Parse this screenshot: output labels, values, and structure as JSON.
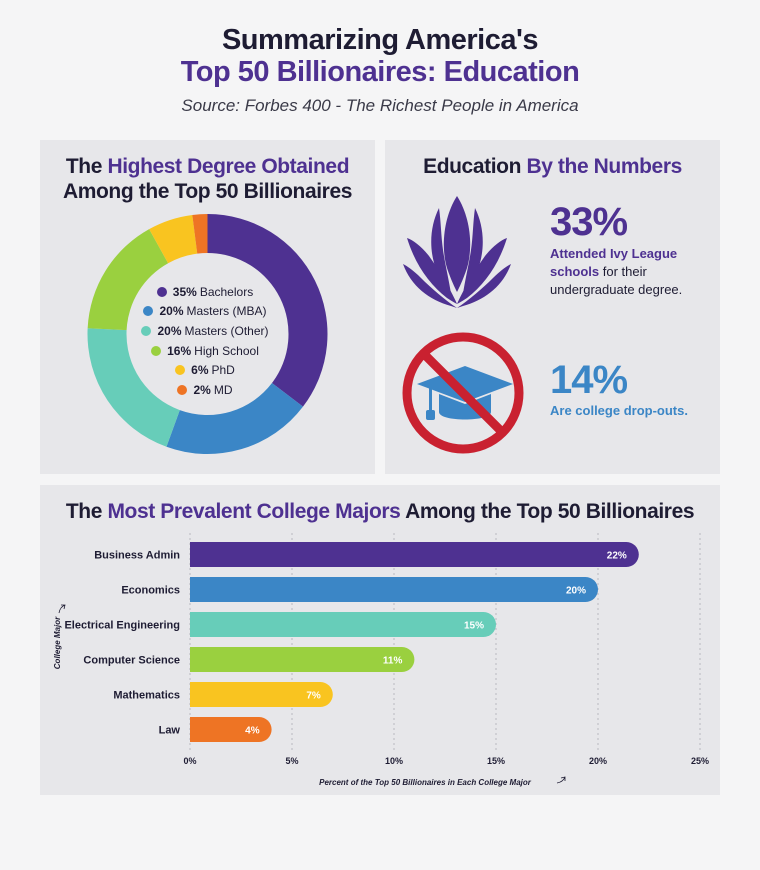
{
  "header": {
    "title_line1": "Summarizing America's",
    "title_line2": "Top 50 Billionaires: Education",
    "subtitle": "Source: Forbes 400 - The Richest People in America"
  },
  "degree_panel": {
    "title_part1": "The ",
    "title_accent": "Highest Degree Obtained",
    "title_line2": "Among the Top 50 Billionaires"
  },
  "numbers_panel": {
    "title_part1": "Education ",
    "title_accent": "By the Numbers",
    "stat1": {
      "value": "33%",
      "text_strong": "Attended Ivy League schools",
      "text_rest": " for their undergraduate degree.",
      "color": "#4e3191"
    },
    "stat2": {
      "value": "14%",
      "text": "Are college drop-outs.",
      "color": "#3b86c6"
    },
    "icons": [
      "ivy-leaf-icon",
      "graduation-cap-icon",
      "prohibited-icon"
    ]
  },
  "majors_panel": {
    "title_part1": "The ",
    "title_accent": "Most Prevalent College Majors",
    "title_part2": " Among the Top 50 Billionaires"
  },
  "chart_data": [
    {
      "type": "pie",
      "donut": true,
      "title": "The Highest Degree Obtained Among the Top 50 Billionaires",
      "categories": [
        "Bachelors",
        "Masters (MBA)",
        "Masters (Other)",
        "High School",
        "PhD",
        "MD"
      ],
      "values": [
        35,
        20,
        20,
        16,
        6,
        2
      ],
      "labels": [
        "35%",
        "20%",
        "20%",
        "16%",
        "6%",
        "2%"
      ],
      "colors": [
        "#4e3191",
        "#3b86c6",
        "#67cdb9",
        "#9ad03f",
        "#f9c420",
        "#ee7424"
      ],
      "legend": "center"
    },
    {
      "type": "bar",
      "orientation": "horizontal",
      "title": "The Most Prevalent College Majors Among the Top 50 Billionaires",
      "categories": [
        "Business Admin",
        "Economics",
        "Electrical Engineering",
        "Computer Science",
        "Mathematics",
        "Law"
      ],
      "values": [
        22,
        20,
        15,
        11,
        7,
        4
      ],
      "labels": [
        "22%",
        "20%",
        "15%",
        "11%",
        "7%",
        "4%"
      ],
      "colors": [
        "#4e3191",
        "#3b86c6",
        "#67cdb9",
        "#9ad03f",
        "#f9c420",
        "#ee7424"
      ],
      "xlabel": "Percent of the Top 50 Billionaires in Each College Major",
      "ylabel": "College Major",
      "xlim": [
        0,
        25
      ],
      "xticks": [
        0,
        5,
        10,
        15,
        20,
        25
      ],
      "xtick_labels": [
        "0%",
        "5%",
        "10%",
        "15%",
        "20%",
        "25%"
      ],
      "grid": true
    }
  ]
}
